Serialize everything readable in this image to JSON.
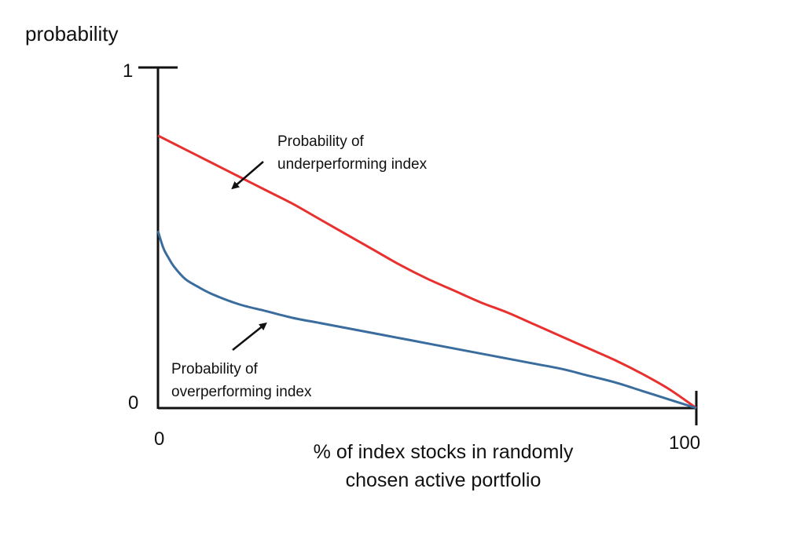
{
  "chart_data": {
    "type": "line",
    "title": "",
    "xlabel_lines": [
      "% of index stocks in randomly",
      "chosen active portfolio"
    ],
    "ylabel": "probability",
    "xlim": [
      0,
      100
    ],
    "ylim": [
      0,
      1
    ],
    "x_ticks": [
      "0",
      "100"
    ],
    "y_ticks": [
      "0",
      "1"
    ],
    "grid": false,
    "series": [
      {
        "key": "under",
        "color": "#e8302e",
        "x": [
          0,
          5,
          10,
          15,
          20,
          25,
          30,
          35,
          40,
          45,
          50,
          55,
          60,
          65,
          70,
          75,
          80,
          85,
          90,
          95,
          100
        ],
        "y": [
          0.8,
          0.76,
          0.72,
          0.68,
          0.64,
          0.6,
          0.555,
          0.51,
          0.465,
          0.42,
          0.38,
          0.345,
          0.31,
          0.28,
          0.245,
          0.21,
          0.175,
          0.14,
          0.1,
          0.055,
          0.0
        ]
      },
      {
        "key": "over",
        "color": "#3a6d9e",
        "x": [
          0,
          1,
          2,
          3,
          5,
          7,
          10,
          15,
          20,
          25,
          30,
          35,
          40,
          45,
          50,
          55,
          60,
          65,
          70,
          75,
          80,
          85,
          90,
          95,
          100
        ],
        "y": [
          0.52,
          0.47,
          0.44,
          0.415,
          0.38,
          0.36,
          0.335,
          0.305,
          0.285,
          0.265,
          0.25,
          0.235,
          0.22,
          0.205,
          0.19,
          0.175,
          0.16,
          0.145,
          0.13,
          0.115,
          0.095,
          0.075,
          0.05,
          0.025,
          0.0
        ]
      }
    ],
    "annotations": [
      {
        "key": "under",
        "lines": [
          "Probability of",
          "underperforming index"
        ]
      },
      {
        "key": "over",
        "lines": [
          "Probability of",
          "overperforming index"
        ]
      }
    ]
  }
}
